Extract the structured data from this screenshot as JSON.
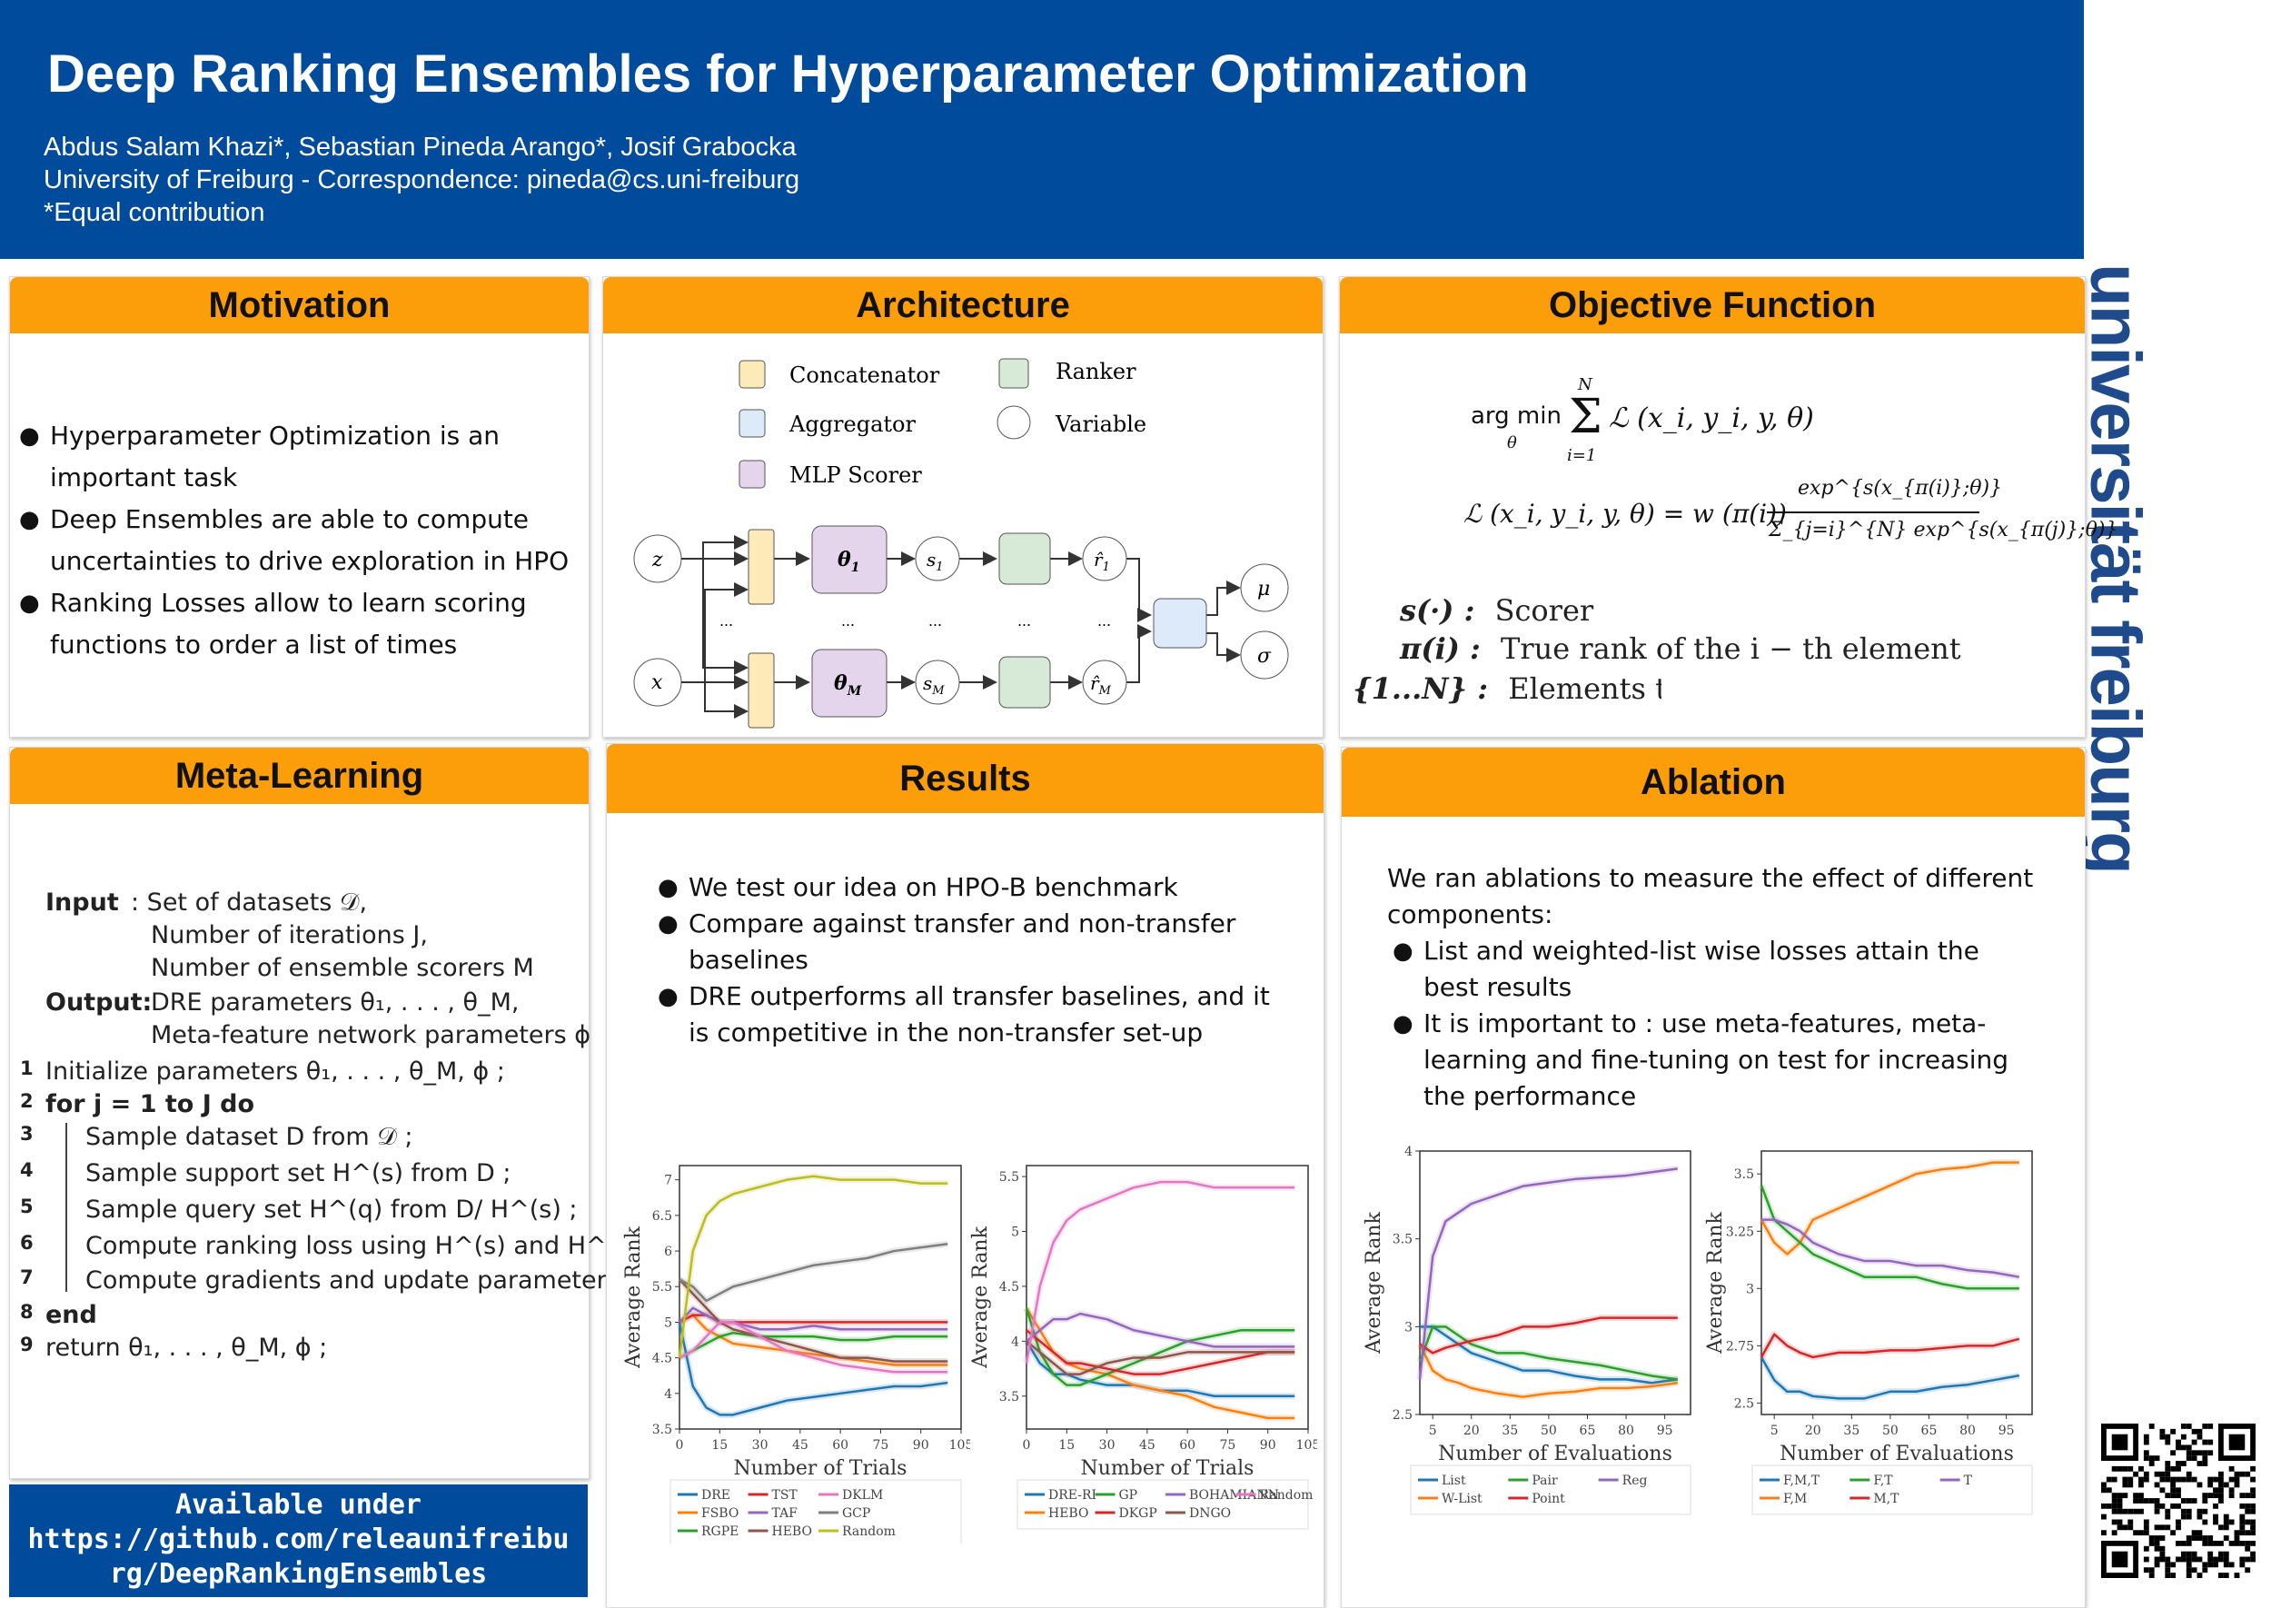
{
  "header": {
    "title": "Deep Ranking Ensembles for Hyperparameter Optimization",
    "authors": "Abdus Salam Khazi*, Sebastian Pineda Arango*, Josif Grabocka",
    "affiliation": "University of Freiburg - Correspondence: pineda@cs.uni-freiburg",
    "note": "*Equal contribution"
  },
  "logo_text": "universität freiburg",
  "colors": {
    "header_bg": "#004b9b",
    "section_header": "#fc9d0a"
  },
  "motivation": {
    "title": "Motivation",
    "bullets": [
      "Hyperparameter Optimization is an important task",
      "Deep Ensembles are able to compute uncertainties to drive exploration in HPO",
      "Ranking Losses allow to learn scoring functions to order a list of times"
    ]
  },
  "architecture": {
    "title": "Architecture",
    "legend": [
      "Concatenator",
      "Aggregator",
      "MLP Scorer",
      "Ranker",
      "Variable"
    ],
    "nodes": {
      "z": "z",
      "x": "x",
      "theta1": "θ",
      "theta1_sub": "1",
      "thetaM": "θ",
      "thetaM_sub": "M",
      "s1": "s",
      "s1_sub": "1",
      "sM": "s",
      "sM_sub": "M",
      "r1": "r̂",
      "r1_sub": "1",
      "rM": "r̂",
      "rM_sub": "M",
      "mu": "μ",
      "sigma": "σ",
      "dots": "..."
    }
  },
  "objective": {
    "title": "Objective Function",
    "eq1_argmin": "arg min",
    "eq1_theta": "θ",
    "eq1_N": "N",
    "eq1_i1": "i=1",
    "eq1_body": "ℒ (x_i, y_i, y, θ)",
    "eq2_lhs": "ℒ (x_i, y_i, y, θ) = w (π(i))",
    "eq2_num": "exp^{s(x_{π(i)};θ)}",
    "eq2_den": "Σ_{j=i}^{N} exp^{s(x_{π(j)};θ)}",
    "defs": [
      {
        "sym": "s(·) :",
        "text": "Scorer"
      },
      {
        "sym": "π(i) :",
        "text": "True rank of the i − th element"
      },
      {
        "sym": "{1...N} :",
        "text": "Elements to rank"
      }
    ]
  },
  "meta_learning": {
    "title": "Meta-Learning",
    "input_label": "Input",
    "output_label": "Output:",
    "inputs": [
      ": Set of datasets 𝒟,",
      "Number of iterations J,",
      "Number of ensemble scorers M"
    ],
    "outputs": [
      "DRE parameters θ₁, . . . , θ_M,",
      "Meta-feature network parameters ϕ"
    ],
    "lines": [
      {
        "n": "1",
        "t": "Initialize parameters θ₁, . . . , θ_M, ϕ ;"
      },
      {
        "n": "2",
        "t": "for j = 1 to J do"
      },
      {
        "n": "3",
        "t": "Sample dataset D from 𝒟 ;"
      },
      {
        "n": "4",
        "t": "Sample support set H^(s) from D ;"
      },
      {
        "n": "5",
        "t": "Sample query set H^(q) from D/ H^(s) ;"
      },
      {
        "n": "6",
        "t": "Compute ranking loss using H^(s) and H^(q) ;"
      },
      {
        "n": "7",
        "t": "Compute gradients and update parameters ;"
      },
      {
        "n": "8",
        "t": "end"
      },
      {
        "n": "9",
        "t": "return θ₁, . . . , θ_M, ϕ ;"
      }
    ]
  },
  "available": {
    "line1": "Available under",
    "line2": "https://github.com/releaunifreibu",
    "line3": "rg/DeepRankingEnsembles"
  },
  "results": {
    "title": "Results",
    "bullets": [
      "We test our idea on HPO-B benchmark",
      "Compare against transfer and non-transfer baselines",
      "DRE outperforms all transfer baselines, and it is competitive in the non-transfer set-up"
    ]
  },
  "ablation": {
    "title": "Ablation",
    "intro": "We ran ablations to measure the effect of different components:",
    "bullets": [
      "List and weighted-list wise losses attain the best results",
      "It is important to : use meta-features, meta-learning and fine-tuning on test for increasing the performance"
    ]
  },
  "chart_data": [
    {
      "type": "line",
      "xlabel": "Number of Trials",
      "ylabel": "Average Rank",
      "xlim": [
        0,
        105
      ],
      "ylim": [
        3.5,
        7.2
      ],
      "xticks": [
        0,
        15,
        30,
        45,
        60,
        75,
        90,
        105
      ],
      "yticks": [
        3.5,
        4.0,
        4.5,
        5.0,
        5.5,
        6.0,
        6.5,
        7.0
      ],
      "x": [
        0,
        5,
        10,
        15,
        20,
        30,
        40,
        50,
        60,
        70,
        80,
        90,
        100
      ],
      "legend": "bottom",
      "series": [
        {
          "name": "DRE",
          "color": "#1f77b4",
          "values": [
            5.0,
            4.1,
            3.8,
            3.7,
            3.7,
            3.8,
            3.9,
            3.95,
            4.0,
            4.05,
            4.1,
            4.1,
            4.15
          ]
        },
        {
          "name": "FSBO",
          "color": "#ff7f0e",
          "values": [
            5.0,
            5.1,
            4.9,
            4.8,
            4.7,
            4.65,
            4.6,
            4.55,
            4.5,
            4.45,
            4.4,
            4.4,
            4.4
          ]
        },
        {
          "name": "RGPE",
          "color": "#2ca02c",
          "values": [
            4.5,
            4.6,
            4.7,
            4.8,
            4.85,
            4.8,
            4.8,
            4.8,
            4.75,
            4.75,
            4.8,
            4.8,
            4.8
          ]
        },
        {
          "name": "TST",
          "color": "#d62728",
          "values": [
            5.0,
            5.1,
            5.1,
            5.0,
            5.0,
            5.0,
            5.0,
            5.0,
            5.0,
            5.0,
            5.0,
            5.0,
            5.0
          ]
        },
        {
          "name": "TAF",
          "color": "#9467bd",
          "values": [
            5.0,
            5.2,
            5.1,
            5.0,
            5.0,
            4.9,
            4.9,
            4.95,
            4.9,
            4.9,
            4.9,
            4.9,
            4.9
          ]
        },
        {
          "name": "HEBO",
          "color": "#8c564b",
          "values": [
            5.6,
            5.4,
            5.2,
            5.0,
            4.9,
            4.8,
            4.7,
            4.6,
            4.5,
            4.5,
            4.45,
            4.45,
            4.45
          ]
        },
        {
          "name": "DKLM",
          "color": "#e377c2",
          "values": [
            4.5,
            4.6,
            4.8,
            5.0,
            5.0,
            4.8,
            4.6,
            4.5,
            4.4,
            4.35,
            4.3,
            4.3,
            4.3
          ]
        },
        {
          "name": "GCP",
          "color": "#7f7f7f",
          "values": [
            5.6,
            5.5,
            5.3,
            5.4,
            5.5,
            5.6,
            5.7,
            5.8,
            5.85,
            5.9,
            6.0,
            6.05,
            6.1
          ]
        },
        {
          "name": "Random",
          "color": "#bcbd22",
          "values": [
            4.5,
            6.0,
            6.5,
            6.7,
            6.8,
            6.9,
            7.0,
            7.05,
            7.0,
            7.0,
            7.0,
            6.95,
            6.95
          ]
        }
      ]
    },
    {
      "type": "line",
      "xlabel": "Number of Trials",
      "ylabel": "Average Rank",
      "xlim": [
        0,
        105
      ],
      "ylim": [
        3.2,
        5.6
      ],
      "xticks": [
        0,
        15,
        30,
        45,
        60,
        75,
        90,
        105
      ],
      "yticks": [
        3.5,
        4.0,
        4.5,
        5.0,
        5.5
      ],
      "x": [
        0,
        5,
        10,
        15,
        20,
        30,
        40,
        50,
        60,
        70,
        80,
        90,
        100
      ],
      "legend": "bottom",
      "series": [
        {
          "name": "DRE-RI",
          "color": "#1f77b4",
          "values": [
            4.0,
            3.8,
            3.7,
            3.7,
            3.65,
            3.6,
            3.6,
            3.55,
            3.55,
            3.5,
            3.5,
            3.5,
            3.5
          ]
        },
        {
          "name": "HEBO",
          "color": "#ff7f0e",
          "values": [
            4.3,
            4.1,
            3.9,
            3.8,
            3.75,
            3.7,
            3.6,
            3.55,
            3.5,
            3.4,
            3.35,
            3.3,
            3.3
          ]
        },
        {
          "name": "GP",
          "color": "#2ca02c",
          "values": [
            4.3,
            3.9,
            3.7,
            3.6,
            3.6,
            3.7,
            3.8,
            3.9,
            4.0,
            4.05,
            4.1,
            4.1,
            4.1
          ]
        },
        {
          "name": "DKGP",
          "color": "#d62728",
          "values": [
            4.1,
            4.0,
            3.9,
            3.8,
            3.8,
            3.75,
            3.7,
            3.7,
            3.75,
            3.8,
            3.85,
            3.9,
            3.9
          ]
        },
        {
          "name": "BOHAMIANN",
          "color": "#9467bd",
          "values": [
            4.0,
            4.1,
            4.2,
            4.2,
            4.25,
            4.2,
            4.1,
            4.05,
            4.0,
            3.95,
            3.95,
            3.95,
            3.95
          ]
        },
        {
          "name": "DNGO",
          "color": "#8c564b",
          "values": [
            4.0,
            3.9,
            3.8,
            3.7,
            3.7,
            3.8,
            3.85,
            3.85,
            3.9,
            3.9,
            3.9,
            3.9,
            3.9
          ]
        },
        {
          "name": "Random",
          "color": "#e377c2",
          "values": [
            3.8,
            4.5,
            4.9,
            5.1,
            5.2,
            5.3,
            5.4,
            5.45,
            5.45,
            5.4,
            5.4,
            5.4,
            5.4
          ]
        }
      ]
    },
    {
      "type": "line",
      "xlabel": "Number of Evaluations",
      "ylabel": "Average Rank",
      "xlim": [
        0,
        105
      ],
      "ylim": [
        2.5,
        4.0
      ],
      "xticks": [
        5,
        20,
        35,
        50,
        65,
        80,
        95
      ],
      "yticks": [
        2.5,
        3.0,
        3.5,
        4.0
      ],
      "x": [
        0,
        5,
        10,
        15,
        20,
        30,
        40,
        50,
        60,
        70,
        80,
        90,
        100
      ],
      "legend": "bottom",
      "series": [
        {
          "name": "List",
          "color": "#1f77b4",
          "values": [
            3.0,
            3.0,
            2.95,
            2.9,
            2.85,
            2.8,
            2.75,
            2.75,
            2.72,
            2.7,
            2.7,
            2.68,
            2.7
          ]
        },
        {
          "name": "W-List",
          "color": "#ff7f0e",
          "values": [
            2.9,
            2.75,
            2.7,
            2.68,
            2.65,
            2.62,
            2.6,
            2.62,
            2.63,
            2.65,
            2.65,
            2.66,
            2.68
          ]
        },
        {
          "name": "Pair",
          "color": "#2ca02c",
          "values": [
            2.8,
            3.0,
            3.0,
            2.95,
            2.9,
            2.85,
            2.85,
            2.82,
            2.8,
            2.78,
            2.75,
            2.72,
            2.7
          ]
        },
        {
          "name": "Point",
          "color": "#d62728",
          "values": [
            2.9,
            2.85,
            2.88,
            2.9,
            2.92,
            2.95,
            3.0,
            3.0,
            3.02,
            3.05,
            3.05,
            3.05,
            3.05
          ]
        },
        {
          "name": "Reg",
          "color": "#9467bd",
          "values": [
            2.7,
            3.4,
            3.6,
            3.65,
            3.7,
            3.75,
            3.8,
            3.82,
            3.84,
            3.85,
            3.86,
            3.88,
            3.9
          ]
        }
      ]
    },
    {
      "type": "line",
      "xlabel": "Number of Evaluations",
      "ylabel": "Average Rank",
      "xlim": [
        0,
        105
      ],
      "ylim": [
        2.45,
        3.6
      ],
      "xticks": [
        5,
        20,
        35,
        50,
        65,
        80,
        95
      ],
      "yticks": [
        2.5,
        2.75,
        3.0,
        3.25,
        3.5
      ],
      "x": [
        0,
        5,
        10,
        15,
        20,
        30,
        40,
        50,
        60,
        70,
        80,
        90,
        100
      ],
      "legend": "bottom",
      "series": [
        {
          "name": "F,M,T",
          "color": "#1f77b4",
          "values": [
            2.7,
            2.6,
            2.55,
            2.55,
            2.53,
            2.52,
            2.52,
            2.55,
            2.55,
            2.57,
            2.58,
            2.6,
            2.62
          ]
        },
        {
          "name": "F,M",
          "color": "#ff7f0e",
          "values": [
            3.3,
            3.2,
            3.15,
            3.2,
            3.3,
            3.35,
            3.4,
            3.45,
            3.5,
            3.52,
            3.53,
            3.55,
            3.55
          ]
        },
        {
          "name": "F,T",
          "color": "#2ca02c",
          "values": [
            3.45,
            3.3,
            3.25,
            3.2,
            3.15,
            3.1,
            3.05,
            3.05,
            3.05,
            3.02,
            3.0,
            3.0,
            3.0
          ]
        },
        {
          "name": "M,T",
          "color": "#d62728",
          "values": [
            2.7,
            2.8,
            2.75,
            2.72,
            2.7,
            2.72,
            2.72,
            2.73,
            2.73,
            2.74,
            2.75,
            2.75,
            2.78
          ]
        },
        {
          "name": "T",
          "color": "#9467bd",
          "values": [
            3.3,
            3.3,
            3.28,
            3.25,
            3.2,
            3.15,
            3.12,
            3.12,
            3.1,
            3.1,
            3.08,
            3.07,
            3.05
          ]
        }
      ]
    }
  ]
}
